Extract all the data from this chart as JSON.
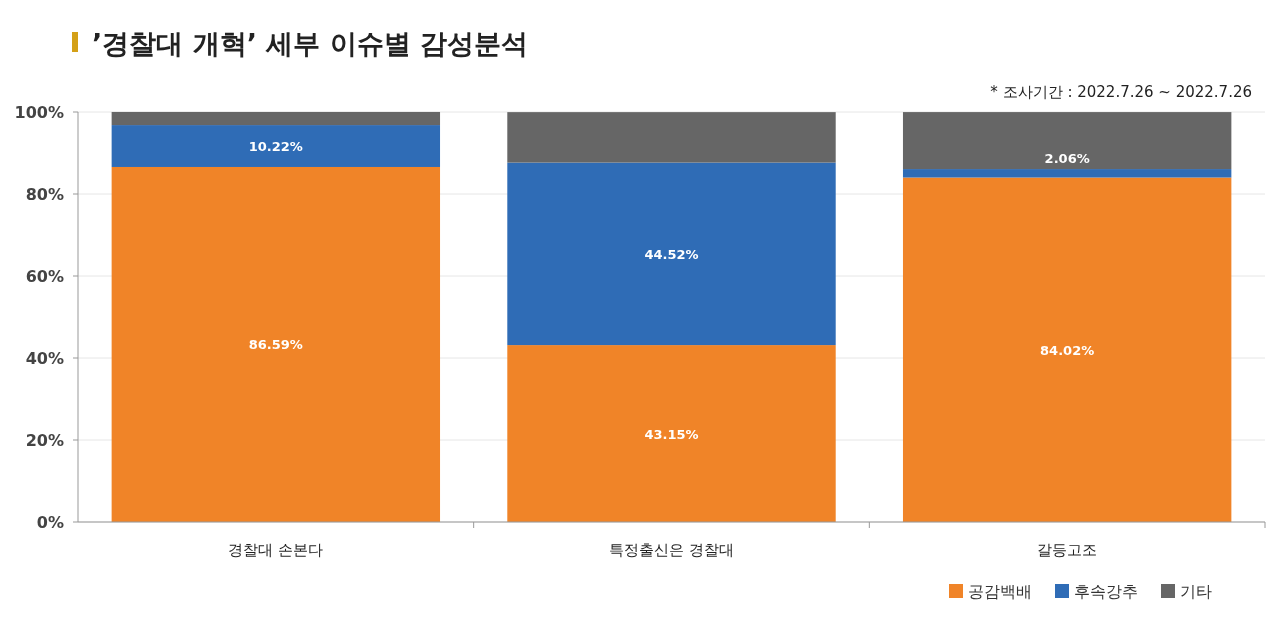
{
  "chart_data": {
    "type": "bar",
    "stacked": true,
    "title": "’경찰대 개혁’ 세부 이슈별 감성분석",
    "annotations": [
      "* 조사기간 : 2022.7.26 ~ 2022.7.26"
    ],
    "categories": [
      "경찰대 손본다",
      "특정출신은 경찰대",
      "갈등고조"
    ],
    "series": [
      {
        "name": "공감백배",
        "color": "#f08428",
        "values": [
          86.59,
          43.15,
          84.02
        ],
        "value_labels": [
          "86.59%",
          "43.15%",
          "84.02%"
        ]
      },
      {
        "name": "후속강추",
        "color": "#2f6cb6",
        "values": [
          10.22,
          44.52,
          2.06
        ],
        "value_labels": [
          "10.22%",
          "44.52%",
          "2.06%"
        ]
      },
      {
        "name": "기타",
        "color": "#666666",
        "values": [
          3.2,
          12.3,
          13.9
        ]
      }
    ],
    "ylim": [
      0,
      100
    ],
    "yticks": [
      {
        "value": 0,
        "label": "0%"
      },
      {
        "value": 20,
        "label": "20%"
      },
      {
        "value": 40,
        "label": "40%"
      },
      {
        "value": 60,
        "label": "60%"
      },
      {
        "value": 80,
        "label": "80%"
      },
      {
        "value": 100,
        "label": "100%"
      }
    ],
    "grid": "y",
    "legend": "bottom right"
  }
}
